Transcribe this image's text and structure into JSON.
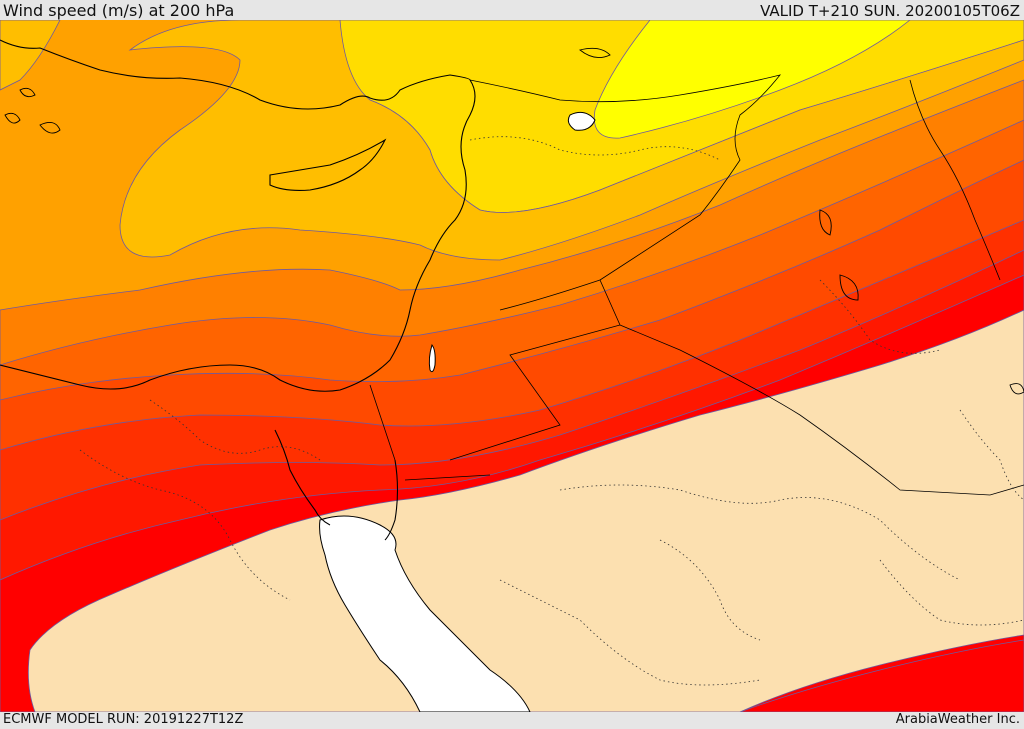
{
  "header": {
    "title": "Wind speed (m/s) at 200 hPa",
    "valid": "VALID T+210 SUN. 20200105T06Z"
  },
  "footer": {
    "model_run": "ECMWF MODEL RUN: 20191227T12Z",
    "credit": "ArabiaWeather Inc."
  },
  "colors": {
    "beige_land": "#fce0b0",
    "water": "#ffffff",
    "bands": [
      "#ffff00",
      "#ffdd00",
      "#ffbe00",
      "#ffa100",
      "#ff8000",
      "#ff6400",
      "#ff4a00",
      "#ff3000",
      "#ff1800",
      "#ff0000"
    ],
    "contour": "#6e5aa0",
    "coast": "#000000"
  }
}
